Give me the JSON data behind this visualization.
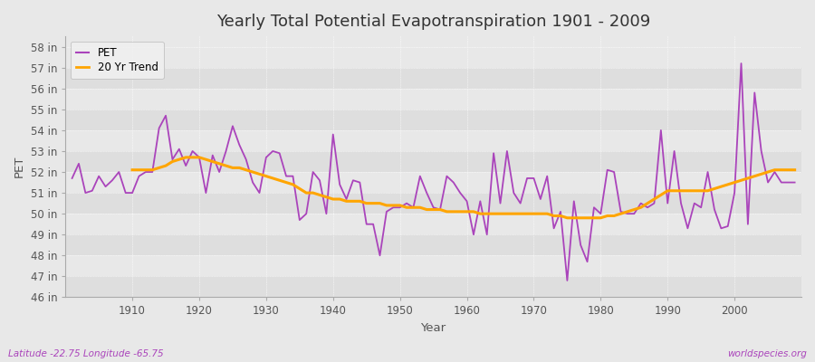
{
  "title": "Yearly Total Potential Evapotranspiration 1901 - 2009",
  "xlabel": "Year",
  "ylabel": "PET",
  "footnote_left": "Latitude -22.75 Longitude -65.75",
  "footnote_right": "worldspecies.org",
  "ylim": [
    46,
    58.5
  ],
  "ytick_labels": [
    "46 in",
    "47 in",
    "48 in",
    "49 in",
    "50 in",
    "51 in",
    "52 in",
    "53 in",
    "54 in",
    "55 in",
    "56 in",
    "57 in",
    "58 in"
  ],
  "ytick_values": [
    46,
    47,
    48,
    49,
    50,
    51,
    52,
    53,
    54,
    55,
    56,
    57,
    58
  ],
  "xlim": [
    1901,
    2010
  ],
  "xtick_values": [
    1910,
    1920,
    1930,
    1940,
    1950,
    1960,
    1970,
    1980,
    1990,
    2000
  ],
  "pet_color": "#AA44BB",
  "trend_color": "#FFA500",
  "bg_color": "#E0E0E0",
  "plot_bg_color": "#E8E8E8",
  "grid_color": "#FFFFFF",
  "legend_bg": "#F0F0F0",
  "footnote_color": "#AA44BB",
  "legend_labels": [
    "PET",
    "20 Yr Trend"
  ],
  "years": [
    1901,
    1902,
    1903,
    1904,
    1905,
    1906,
    1907,
    1908,
    1909,
    1910,
    1911,
    1912,
    1913,
    1914,
    1915,
    1916,
    1917,
    1918,
    1919,
    1920,
    1921,
    1922,
    1923,
    1924,
    1925,
    1926,
    1927,
    1928,
    1929,
    1930,
    1931,
    1932,
    1933,
    1934,
    1935,
    1936,
    1937,
    1938,
    1939,
    1940,
    1941,
    1942,
    1943,
    1944,
    1945,
    1946,
    1947,
    1948,
    1949,
    1950,
    1951,
    1952,
    1953,
    1954,
    1955,
    1956,
    1957,
    1958,
    1959,
    1960,
    1961,
    1962,
    1963,
    1964,
    1965,
    1966,
    1967,
    1968,
    1969,
    1970,
    1971,
    1972,
    1973,
    1974,
    1975,
    1976,
    1977,
    1978,
    1979,
    1980,
    1981,
    1982,
    1983,
    1984,
    1985,
    1986,
    1987,
    1988,
    1989,
    1990,
    1991,
    1992,
    1993,
    1994,
    1995,
    1996,
    1997,
    1998,
    1999,
    2000,
    2001,
    2002,
    2003,
    2004,
    2005,
    2006,
    2007,
    2008,
    2009
  ],
  "pet_values": [
    51.7,
    52.4,
    51.0,
    51.1,
    51.8,
    51.3,
    51.6,
    52.0,
    51.0,
    51.0,
    51.8,
    52.0,
    52.0,
    54.1,
    54.7,
    52.6,
    53.1,
    52.3,
    53.0,
    52.7,
    51.0,
    52.8,
    52.0,
    53.0,
    54.2,
    53.3,
    52.6,
    51.5,
    51.0,
    52.7,
    53.0,
    52.9,
    51.8,
    51.8,
    49.7,
    50.0,
    52.0,
    51.6,
    50.0,
    53.8,
    51.4,
    50.7,
    51.6,
    51.5,
    49.5,
    49.5,
    48.0,
    50.1,
    50.3,
    50.3,
    50.5,
    50.3,
    51.8,
    51.0,
    50.3,
    50.2,
    51.8,
    51.5,
    51.0,
    50.6,
    49.0,
    50.6,
    49.0,
    52.9,
    50.5,
    53.0,
    51.0,
    50.5,
    51.7,
    51.7,
    50.7,
    51.8,
    49.3,
    50.1,
    46.8,
    50.6,
    48.5,
    47.7,
    50.3,
    50.0,
    52.1,
    52.0,
    50.1,
    50.0,
    50.0,
    50.5,
    50.3,
    50.5,
    54.0,
    50.5,
    53.0,
    50.5,
    49.3,
    50.5,
    50.3,
    52.0,
    50.2,
    49.3,
    49.4,
    51.0,
    57.2,
    49.5,
    55.8,
    53.0,
    51.5,
    52.0,
    51.5,
    51.5,
    51.5
  ],
  "trend_values": [
    null,
    null,
    null,
    null,
    null,
    null,
    null,
    null,
    null,
    52.1,
    52.1,
    52.1,
    52.1,
    52.2,
    52.3,
    52.5,
    52.6,
    52.7,
    52.7,
    52.7,
    52.6,
    52.5,
    52.4,
    52.3,
    52.2,
    52.2,
    52.1,
    52.0,
    51.9,
    51.8,
    51.7,
    51.6,
    51.5,
    51.4,
    51.2,
    51.0,
    51.0,
    50.9,
    50.8,
    50.7,
    50.7,
    50.6,
    50.6,
    50.6,
    50.5,
    50.5,
    50.5,
    50.4,
    50.4,
    50.4,
    50.3,
    50.3,
    50.3,
    50.2,
    50.2,
    50.2,
    50.1,
    50.1,
    50.1,
    50.1,
    50.1,
    50.0,
    50.0,
    50.0,
    50.0,
    50.0,
    50.0,
    50.0,
    50.0,
    50.0,
    50.0,
    50.0,
    49.9,
    49.9,
    49.8,
    49.8,
    49.8,
    49.8,
    49.8,
    49.8,
    49.9,
    49.9,
    50.0,
    50.1,
    50.2,
    50.3,
    50.5,
    50.7,
    50.9,
    51.1,
    51.1,
    51.1,
    51.1,
    51.1,
    51.1,
    51.1,
    51.2,
    51.3,
    51.4,
    51.5,
    51.6,
    51.7,
    51.8,
    51.9,
    52.0,
    52.1,
    52.1,
    52.1,
    52.1
  ]
}
